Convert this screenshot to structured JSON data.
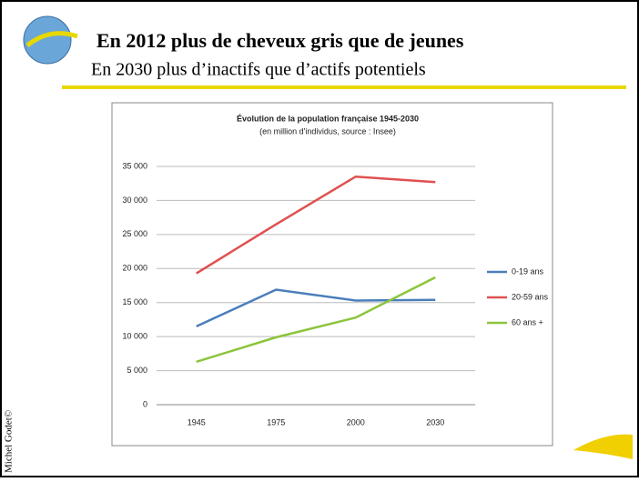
{
  "slide": {
    "title": "En 2012 plus de cheveux gris que de jeunes",
    "subtitle": "En  2030 plus d’inactifs que d’actifs potentiels",
    "author": "Michel Godet©"
  },
  "chart_data": {
    "type": "line",
    "title": "Évolution de la population française 1945-2030",
    "subtitle": "(en million d'individus, source : Insee)",
    "categories": [
      "1945",
      "1975",
      "2000",
      "2030"
    ],
    "series": [
      {
        "name": "0-19 ans",
        "color": "#4a7ebb",
        "values": [
          11500,
          16900,
          15300,
          15400
        ]
      },
      {
        "name": "20-59 ans",
        "color": "#e05050",
        "values": [
          19300,
          26500,
          33500,
          32700
        ]
      },
      {
        "name": "60 ans +",
        "color": "#8cc43c",
        "values": [
          6300,
          9900,
          12800,
          18700
        ]
      }
    ],
    "ylim": [
      0,
      35000
    ],
    "yticks": [
      0,
      {
        "value": 5000,
        "label": "5 000"
      },
      {
        "value": 10000,
        "label": "10 000"
      },
      {
        "value": 15000,
        "label": "15 000"
      },
      {
        "value": 20000,
        "label": "20 000"
      },
      {
        "value": 25000,
        "label": "25 000"
      },
      {
        "value": 30000,
        "label": "30 000"
      },
      {
        "value": 35000,
        "label": "35 000"
      }
    ],
    "grid": true,
    "legend": "right"
  }
}
